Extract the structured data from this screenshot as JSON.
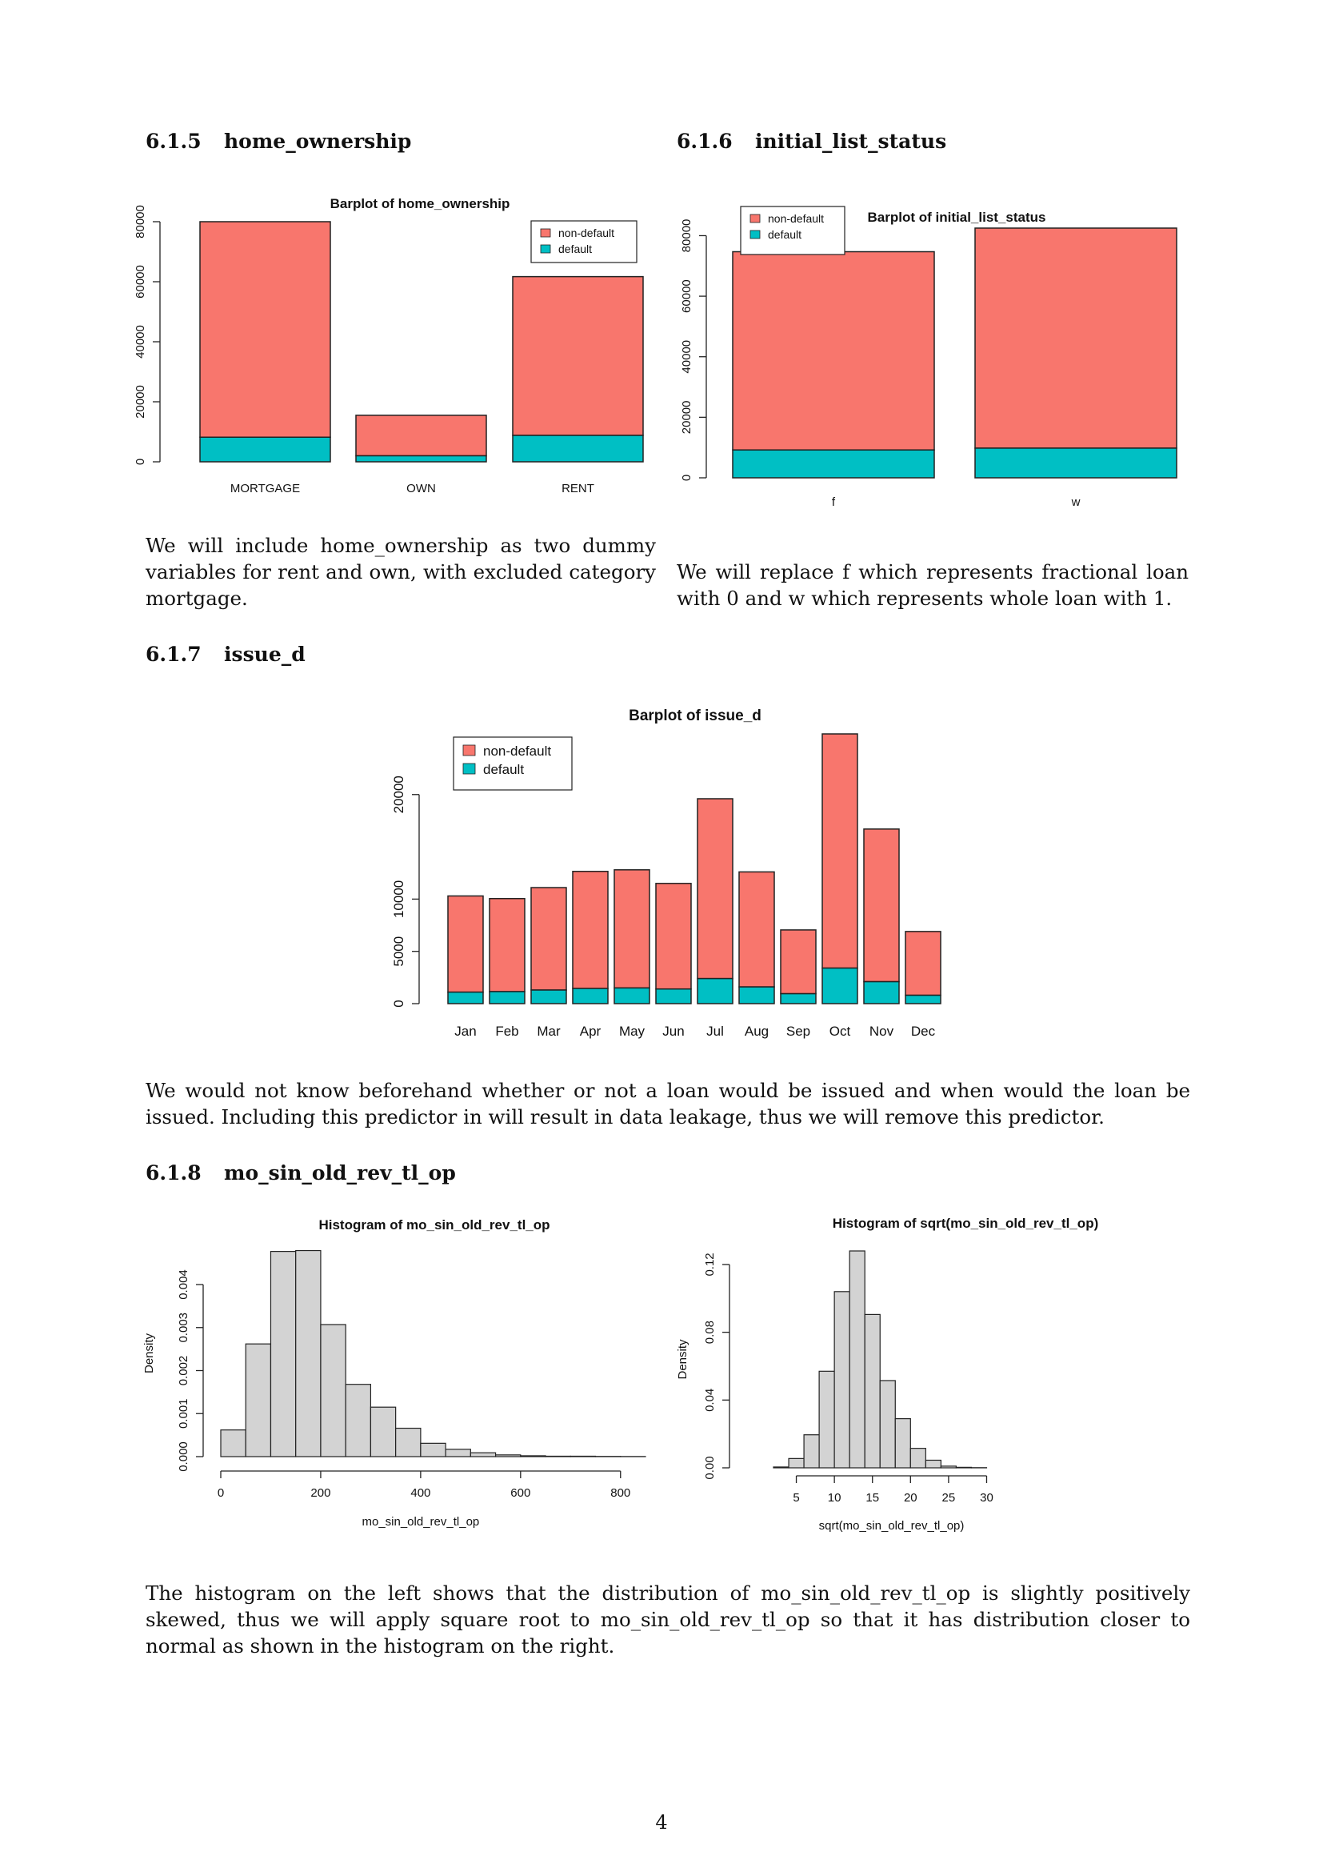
{
  "sections": {
    "s615": {
      "number": "6.1.5",
      "title": "home_ownership"
    },
    "s616": {
      "number": "6.1.6",
      "title": "initial_list_status"
    },
    "s617": {
      "number": "6.1.7",
      "title": "issue_d"
    },
    "s618": {
      "number": "6.1.8",
      "title": "mo_sin_old_rev_tl_op"
    }
  },
  "paragraphs": {
    "home_ownership": "We will include home_ownership as two dummy variables for rent and own, with excluded category mortgage.",
    "initial_list_status": "We will replace f which represents fractional loan with 0 and w which represents whole loan with 1.",
    "issue_d": "We would not know beforehand whether or not a loan would be issued and when would the loan be issued. Including this predictor in will result in data leakage, thus we will remove this predictor.",
    "histograms": "The histogram on the left shows that the distribution of mo_sin_old_rev_tl_op is slightly positively skewed, thus we will apply square root to mo_sin_old_rev_tl_op so that it has distribution closer to normal as shown in the histogram on the right."
  },
  "page_number": "4",
  "colors": {
    "non_default": "#F8766D",
    "default": "#00BFC4",
    "hist_fill": "#D3D3D3"
  },
  "chart_data": [
    {
      "id": "home",
      "type": "bar",
      "stacked": true,
      "title": "Barplot of home_ownership",
      "categories": [
        "MORTGAGE",
        "OWN",
        "RENT"
      ],
      "series": [
        {
          "name": "default",
          "values": [
            8200,
            2000,
            8800
          ]
        },
        {
          "name": "non-default",
          "values": [
            71800,
            13500,
            52900
          ]
        }
      ],
      "yticks": [
        "0",
        "20000",
        "40000",
        "60000",
        "80000"
      ],
      "ylim": [
        0,
        80000
      ],
      "legend": [
        "non-default",
        "default"
      ],
      "legend_position": "top-right"
    },
    {
      "id": "init",
      "type": "bar",
      "stacked": true,
      "title": "Barplot of initial_list_status",
      "categories": [
        "f",
        "w"
      ],
      "series": [
        {
          "name": "default",
          "values": [
            9200,
            9800
          ]
        },
        {
          "name": "non-default",
          "values": [
            65500,
            72700
          ]
        }
      ],
      "yticks": [
        "0",
        "20000",
        "40000",
        "60000",
        "80000"
      ],
      "ylim": [
        0,
        82500
      ],
      "legend": [
        "non-default",
        "default"
      ],
      "legend_position": "top-left"
    },
    {
      "id": "issue",
      "type": "bar",
      "stacked": true,
      "title": "Barplot of issue_d",
      "categories": [
        "Jan",
        "Feb",
        "Mar",
        "Apr",
        "May",
        "Jun",
        "Jul",
        "Aug",
        "Sep",
        "Oct",
        "Nov",
        "Dec"
      ],
      "series": [
        {
          "name": "default",
          "values": [
            1100,
            1150,
            1300,
            1450,
            1500,
            1400,
            2400,
            1600,
            950,
            3400,
            2100,
            800
          ]
        },
        {
          "name": "non-default",
          "values": [
            9200,
            8900,
            9800,
            11200,
            11300,
            10100,
            17200,
            11000,
            6100,
            22400,
            14600,
            6100
          ]
        }
      ],
      "yticks": [
        "0",
        "5000",
        "10000",
        "20000"
      ],
      "ylim": [
        0,
        25800
      ],
      "legend": [
        "non-default",
        "default"
      ],
      "legend_position": "top-left"
    },
    {
      "id": "hist1",
      "type": "bar",
      "title": "Histogram of mo_sin_old_rev_tl_op",
      "xlabel": "mo_sin_old_rev_tl_op",
      "ylabel": "Density",
      "bin_edges": [
        0,
        50,
        100,
        150,
        200,
        250,
        300,
        350,
        400,
        450,
        500,
        550,
        600,
        650,
        700,
        750,
        800,
        850
      ],
      "values": [
        0.00062,
        0.00262,
        0.00477,
        0.00479,
        0.00307,
        0.00168,
        0.00115,
        0.00066,
        0.00031,
        0.00017,
        9e-05,
        4e-05,
        2e-05,
        1e-05,
        1e-05,
        5e-06,
        3e-06
      ],
      "xticks": [
        "0",
        "200",
        "400",
        "600",
        "800"
      ],
      "yticks": [
        "0.000",
        "0.001",
        "0.002",
        "0.003",
        "0.004"
      ],
      "xlim": [
        0,
        850
      ],
      "ylim": [
        0,
        0.0048
      ]
    },
    {
      "id": "hist2",
      "type": "bar",
      "title": "Histogram of sqrt(mo_sin_old_rev_tl_op)",
      "xlabel": "sqrt(mo_sin_old_rev_tl_op)",
      "ylabel": "Density",
      "bin_edges": [
        2,
        4,
        6,
        8,
        10,
        12,
        14,
        16,
        18,
        20,
        22,
        24,
        26,
        28,
        30
      ],
      "values": [
        0.0005,
        0.0055,
        0.0195,
        0.057,
        0.104,
        0.128,
        0.0905,
        0.0515,
        0.029,
        0.0115,
        0.0045,
        0.001,
        0.0003,
        0.0001
      ],
      "xticks": [
        "5",
        "10",
        "15",
        "20",
        "25",
        "30"
      ],
      "yticks": [
        "0.00",
        "0.04",
        "0.08",
        "0.12"
      ],
      "xlim": [
        2,
        30
      ],
      "ylim": [
        0,
        0.128
      ]
    }
  ]
}
